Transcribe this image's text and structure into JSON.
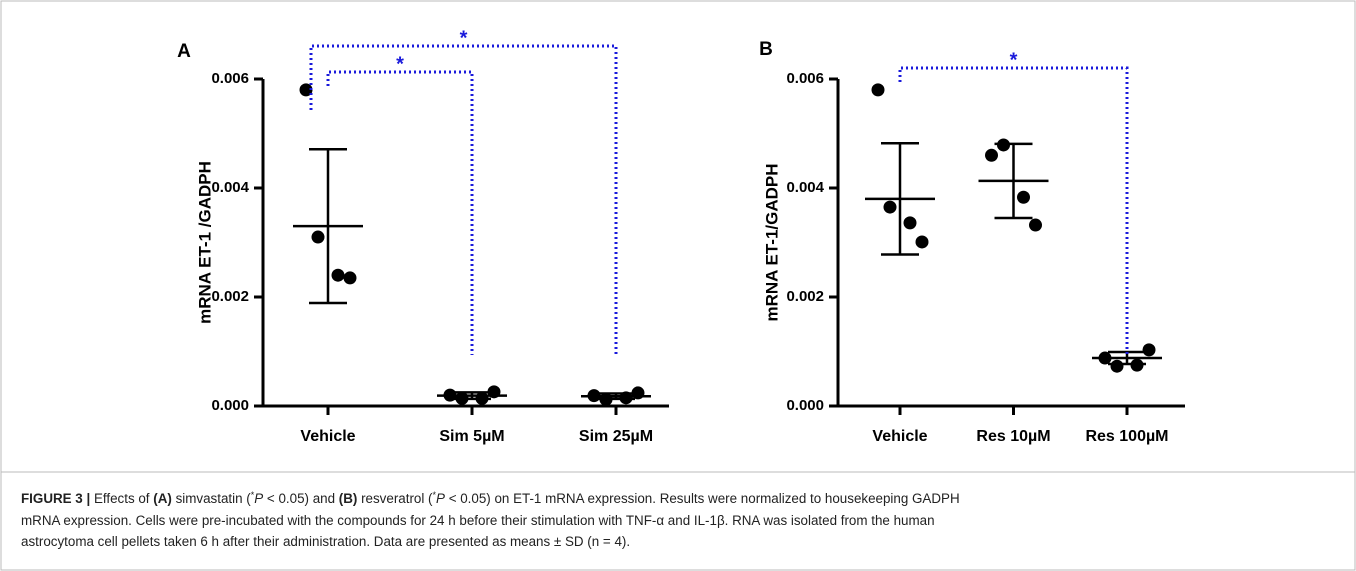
{
  "chart_data": [
    {
      "type": "dot",
      "panel": "A",
      "y_label": "mRNA ET-1 /GADPH",
      "categories": [
        "Vehicle",
        "Sim 5µM",
        "Sim 25µM"
      ],
      "points": [
        [
          0.0058,
          0.0031,
          0.0024,
          0.00235
        ],
        [
          0.0002,
          0.00014,
          0.00014,
          0.00026
        ],
        [
          0.00019,
          0.00012,
          0.00015,
          0.00024
        ]
      ],
      "means": [
        0.0033,
        0.00019,
        0.00018
      ],
      "sd": [
        0.00141,
        6e-05,
        5e-05
      ],
      "color": "#000000",
      "ylim": [
        0,
        0.006
      ],
      "yticks": [
        {
          "value": 0,
          "label": "0.000"
        },
        {
          "value": 0.002,
          "label": "0.002"
        },
        {
          "value": 0.004,
          "label": "0.004"
        },
        {
          "value": 0.006,
          "label": "0.006"
        }
      ],
      "significance": [
        {
          "label": "*",
          "between": [
            0,
            2
          ]
        },
        {
          "label": "*",
          "between": [
            0,
            1
          ]
        }
      ],
      "significance_color": "#1a1adb"
    },
    {
      "type": "dot",
      "panel": "B",
      "y_label": "mRNA ET-1/GADPH",
      "categories": [
        "Vehicle",
        "Res 10µM",
        "Res 100µM"
      ],
      "points": [
        [
          0.0058,
          0.00365,
          0.00336,
          0.00301
        ],
        [
          0.0046,
          0.00479,
          0.00383,
          0.00332
        ],
        [
          0.00088,
          0.00073,
          0.00075,
          0.00103
        ]
      ],
      "means": [
        0.0038,
        0.00413,
        0.00088
      ],
      "sd": [
        0.00102,
        0.00068,
        0.00011
      ],
      "color": "#000000",
      "ylim": [
        0,
        0.006
      ],
      "yticks": [
        {
          "value": 0,
          "label": "0.000"
        },
        {
          "value": 0.002,
          "label": "0.002"
        },
        {
          "value": 0.004,
          "label": "0.004"
        },
        {
          "value": 0.006,
          "label": "0.006"
        }
      ],
      "significance": [
        {
          "label": "*",
          "between": [
            0,
            2
          ]
        }
      ],
      "significance_color": "#1a1adb"
    }
  ],
  "caption": [
    [
      {
        "text": "FIGURE 3 |",
        "style": "b"
      },
      {
        "text": " Effects of ",
        "style": "n"
      },
      {
        "text": "(A)",
        "style": "b"
      },
      {
        "text": " simvastatin (",
        "style": "n"
      },
      {
        "text": "*",
        "style": "sup"
      },
      {
        "text": "P",
        "style": "i"
      },
      {
        "text": " < 0.05) and ",
        "style": "n"
      },
      {
        "text": "(B)",
        "style": "b"
      },
      {
        "text": " resveratrol (",
        "style": "n"
      },
      {
        "text": "*",
        "style": "sup"
      },
      {
        "text": "P",
        "style": "i"
      },
      {
        "text": " < 0.05) on ET-1 mRNA expression. Results were normalized to housekeeping GADPH",
        "style": "n"
      }
    ],
    [
      {
        "text": "mRNA expression. Cells were pre-incubated with the compounds for 24 h before their stimulation with TNF-α and IL-1β. RNA was isolated from the human",
        "style": "n"
      }
    ],
    [
      {
        "text": "astrocytoma cell pellets taken 6 h after their administration. Data are presented as means ± SD (n = 4).",
        "style": "n"
      }
    ]
  ]
}
